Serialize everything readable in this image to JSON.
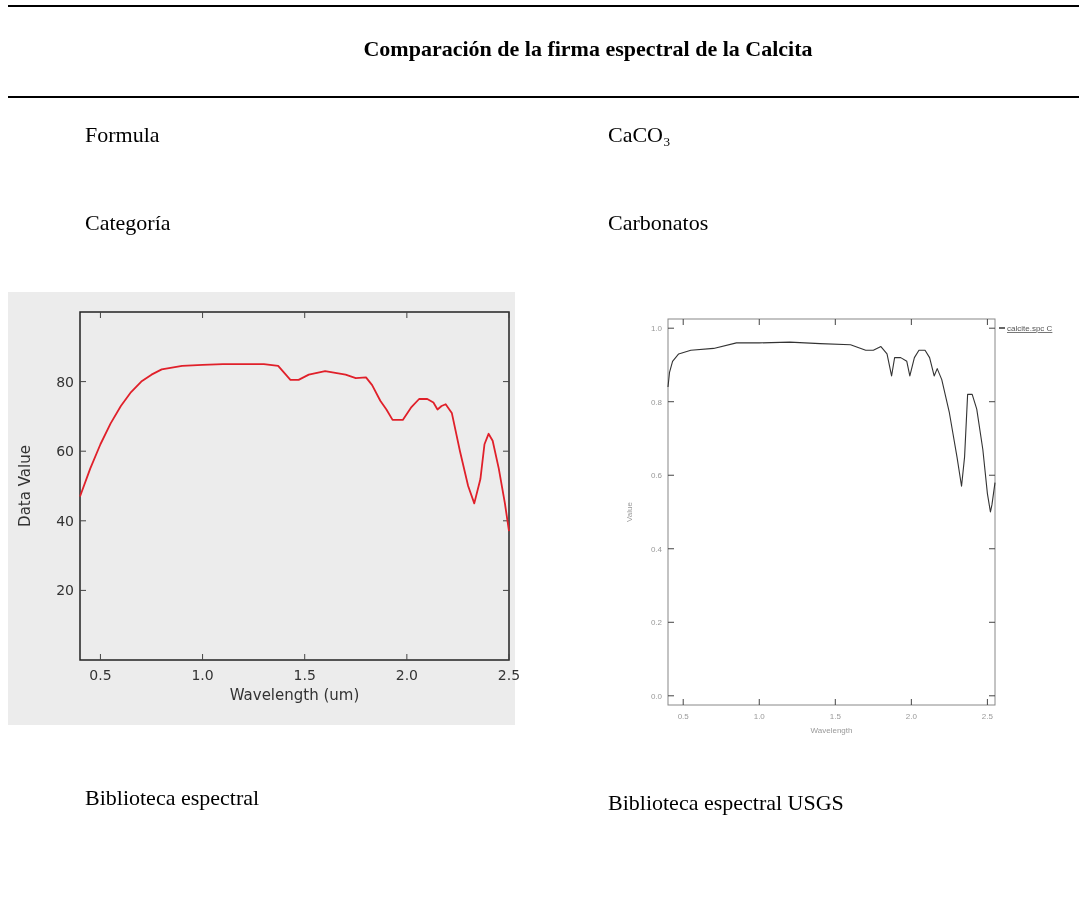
{
  "chart_data": [
    {
      "type": "other",
      "title": "Comparación de la firma espectral de la Calcita",
      "annotations": [
        "Formula",
        "CaCO₃",
        "Categoría",
        "Carbonatos"
      ]
    },
    {
      "type": "line",
      "xlabel": "Wavelength (um)",
      "ylabel": "Data Value",
      "xlim": [
        0.4,
        2.5
      ],
      "xticks": [
        {
          "value": 0.5,
          "label": "0.5"
        },
        {
          "value": 1,
          "label": "1.0"
        },
        {
          "value": 1.5,
          "label": "1.5"
        },
        {
          "value": 2,
          "label": "2.0"
        },
        {
          "value": 2.5,
          "label": "2.5"
        }
      ],
      "ylim": [
        0,
        100
      ],
      "yticks": [
        20,
        40,
        60,
        80
      ],
      "grid": false,
      "legend": false,
      "annotations": [
        "Biblioteca espectral"
      ],
      "series": [
        {
          "color": "#e0202a",
          "x": [
            0.4,
            0.45,
            0.5,
            0.55,
            0.6,
            0.65,
            0.7,
            0.75,
            0.8,
            0.9,
            1.0,
            1.1,
            1.2,
            1.3,
            1.37,
            1.4,
            1.43,
            1.47,
            1.52,
            1.6,
            1.7,
            1.75,
            1.8,
            1.83,
            1.87,
            1.9,
            1.93,
            1.98,
            2.02,
            2.06,
            2.1,
            2.13,
            2.15,
            2.17,
            2.19,
            2.22,
            2.26,
            2.3,
            2.33,
            2.36,
            2.38,
            2.4,
            2.42,
            2.45,
            2.48,
            2.5
          ],
          "values": [
            47,
            55,
            62,
            68,
            73,
            77,
            80,
            82,
            83.5,
            84.5,
            84.8,
            85,
            85,
            85,
            84.5,
            82.5,
            80.5,
            80.5,
            82,
            83,
            82,
            81,
            81.2,
            79,
            74.5,
            72,
            69,
            69,
            72.5,
            75,
            75,
            74,
            72,
            73,
            73.5,
            71,
            60,
            50,
            45,
            52,
            62,
            65,
            63,
            55,
            45,
            37
          ]
        }
      ]
    },
    {
      "type": "line",
      "xlabel": "Wavelength",
      "ylabel": "Value",
      "xlim": [
        0.4,
        2.55
      ],
      "xticks": [
        {
          "value": 0.5,
          "label": "0.5"
        },
        {
          "value": 1,
          "label": "1.0"
        },
        {
          "value": 1.5,
          "label": "1.5"
        },
        {
          "value": 2,
          "label": "2.0"
        },
        {
          "value": 2.5,
          "label": "2.5"
        }
      ],
      "ylim": [
        -0.025,
        1.025
      ],
      "yticks": [
        {
          "value": 0,
          "label": "0.0"
        },
        {
          "value": 0.2,
          "label": "0.2"
        },
        {
          "value": 0.4,
          "label": "0.4"
        },
        {
          "value": 0.6,
          "label": "0.6"
        },
        {
          "value": 0.8,
          "label": "0.8"
        },
        {
          "value": 1,
          "label": "1.0"
        }
      ],
      "grid": false,
      "legend": "top right",
      "annotations": [
        "Biblioteca espectral USGS"
      ],
      "series": [
        {
          "name": "calcite.spc C",
          "color": "#333333",
          "x": [
            0.4,
            0.41,
            0.43,
            0.47,
            0.55,
            0.7,
            0.85,
            1.0,
            1.2,
            1.4,
            1.6,
            1.7,
            1.75,
            1.8,
            1.84,
            1.87,
            1.89,
            1.93,
            1.97,
            1.99,
            2.02,
            2.05,
            2.09,
            2.12,
            2.15,
            2.17,
            2.2,
            2.25,
            2.3,
            2.33,
            2.35,
            2.37,
            2.4,
            2.43,
            2.47,
            2.5,
            2.52,
            2.53,
            2.55
          ],
          "values": [
            0.84,
            0.88,
            0.91,
            0.93,
            0.94,
            0.945,
            0.96,
            0.96,
            0.962,
            0.958,
            0.955,
            0.94,
            0.94,
            0.95,
            0.93,
            0.87,
            0.92,
            0.92,
            0.91,
            0.87,
            0.92,
            0.94,
            0.94,
            0.92,
            0.87,
            0.89,
            0.86,
            0.77,
            0.65,
            0.57,
            0.65,
            0.82,
            0.82,
            0.78,
            0.67,
            0.55,
            0.5,
            0.52,
            0.58
          ]
        }
      ]
    }
  ]
}
